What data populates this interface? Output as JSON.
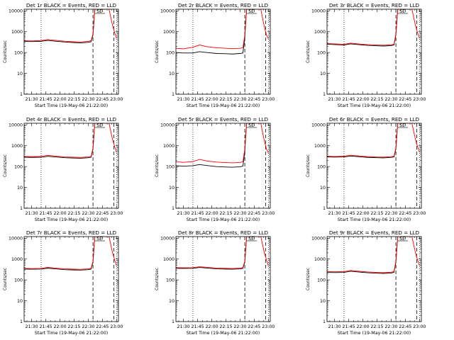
{
  "colors": {
    "events": "#000000",
    "lld": "#ff0000",
    "background": "#ffffff"
  },
  "chart_data": [
    {
      "type": "line",
      "title": "Det 1r BLACK = Events, RED = LLD",
      "xlabel": "Start Time (19-May-06 21:22:00)",
      "ylabel": "Counts/sec",
      "ylim": [
        1,
        12000
      ],
      "yscale": "log",
      "xlim": [
        "21:22",
        "23:02"
      ],
      "xticks": [
        "21:30",
        "21:45",
        "22:00",
        "22:15",
        "22:30",
        "22:45",
        "23:00"
      ],
      "yticks": [
        "1",
        "10",
        "100",
        "1000",
        "10000"
      ],
      "grid": false,
      "markers": {
        "dotted_vertical": [
          "21:40",
          "23:00"
        ],
        "dashed_vertical": [
          "22:35",
          "22:57"
        ]
      },
      "annotation": "SE",
      "series": [
        {
          "name": "Events",
          "x": [
            "21:22",
            "21:30",
            "21:40",
            "21:47",
            "21:55",
            "22:05",
            "22:15",
            "22:22",
            "22:30",
            "22:33",
            "22:35",
            "22:36",
            "22:37"
          ],
          "y": [
            340,
            335,
            345,
            380,
            350,
            320,
            300,
            290,
            310,
            330,
            700,
            3000,
            12000
          ]
        },
        {
          "name": "LLD",
          "x": [
            "21:22",
            "21:30",
            "21:40",
            "21:47",
            "21:55",
            "22:05",
            "22:15",
            "22:22",
            "22:30",
            "22:33",
            "22:35",
            "22:36",
            "22:37",
            "22:52",
            "22:54",
            "22:56",
            "22:58",
            "23:00"
          ],
          "y": [
            370,
            360,
            375,
            420,
            385,
            350,
            330,
            320,
            345,
            370,
            800,
            3300,
            12000,
            12000,
            4500,
            1800,
            900,
            480
          ]
        }
      ]
    },
    {
      "type": "line",
      "title": "Det 2r BLACK = Events, RED = LLD",
      "xlabel": "Start Time (19-May-06 21:22:00)",
      "ylabel": "Counts/sec",
      "ylim": [
        1,
        12000
      ],
      "yscale": "log",
      "xlim": [
        "21:22",
        "23:02"
      ],
      "xticks": [
        "21:30",
        "21:45",
        "22:00",
        "22:15",
        "22:30",
        "22:45",
        "23:00"
      ],
      "yticks": [
        "1",
        "10",
        "100",
        "1000",
        "10000"
      ],
      "grid": false,
      "markers": {
        "dotted_vertical": [
          "21:40",
          "23:00"
        ],
        "dashed_vertical": [
          "22:35",
          "22:57"
        ]
      },
      "annotation": "SE",
      "series": [
        {
          "name": "Events",
          "x": [
            "21:22",
            "21:30",
            "21:40",
            "21:47",
            "21:55",
            "22:05",
            "22:15",
            "22:22",
            "22:30",
            "22:33",
            "22:35",
            "22:36",
            "22:37"
          ],
          "y": [
            100,
            95,
            95,
            110,
            100,
            90,
            88,
            85,
            90,
            95,
            500,
            3000,
            12000
          ]
        },
        {
          "name": "LLD",
          "x": [
            "21:22",
            "21:30",
            "21:40",
            "21:47",
            "21:55",
            "22:05",
            "22:15",
            "22:22",
            "22:30",
            "22:33",
            "22:35",
            "22:36",
            "22:37",
            "22:52",
            "22:54",
            "22:56",
            "22:58",
            "23:00"
          ],
          "y": [
            160,
            150,
            180,
            230,
            190,
            170,
            160,
            155,
            160,
            170,
            700,
            3500,
            12000,
            12000,
            4000,
            1500,
            700,
            450
          ]
        }
      ]
    },
    {
      "type": "line",
      "title": "Det 3r BLACK = Events, RED = LLD",
      "xlabel": "Start Time (19-May-06 21:22:00)",
      "ylabel": "Counts/sec",
      "ylim": [
        1,
        12000
      ],
      "yscale": "log",
      "xlim": [
        "21:22",
        "23:02"
      ],
      "xticks": [
        "21:30",
        "21:45",
        "22:00",
        "22:15",
        "22:30",
        "22:45",
        "23:00"
      ],
      "yticks": [
        "1",
        "10",
        "100",
        "1000",
        "10000"
      ],
      "grid": false,
      "markers": {
        "dotted_vertical": [
          "21:40",
          "23:00"
        ],
        "dashed_vertical": [
          "22:35",
          "22:57"
        ]
      },
      "annotation": "SE",
      "series": [
        {
          "name": "Events",
          "x": [
            "21:22",
            "21:30",
            "21:40",
            "21:47",
            "21:55",
            "22:05",
            "22:15",
            "22:22",
            "22:30",
            "22:33",
            "22:35",
            "22:36",
            "22:37"
          ],
          "y": [
            250,
            240,
            230,
            260,
            240,
            220,
            210,
            205,
            215,
            230,
            700,
            3000,
            12000
          ]
        },
        {
          "name": "LLD",
          "x": [
            "21:22",
            "21:30",
            "21:40",
            "21:47",
            "21:55",
            "22:05",
            "22:15",
            "22:22",
            "22:30",
            "22:33",
            "22:35",
            "22:36",
            "22:37",
            "22:52",
            "22:54",
            "22:56",
            "22:58",
            "23:00"
          ],
          "y": [
            270,
            260,
            250,
            280,
            260,
            240,
            230,
            225,
            235,
            250,
            800,
            3300,
            12000,
            12000,
            4500,
            1800,
            900,
            480
          ]
        }
      ]
    },
    {
      "type": "line",
      "title": "Det 4r BLACK = Events, RED = LLD",
      "xlabel": "Start Time (19-May-06 21:22:00)",
      "ylabel": "Counts/sec",
      "ylim": [
        1,
        12000
      ],
      "yscale": "log",
      "xlim": [
        "21:22",
        "23:02"
      ],
      "xticks": [
        "21:30",
        "21:45",
        "22:00",
        "22:15",
        "22:30",
        "22:45",
        "23:00"
      ],
      "yticks": [
        "1",
        "10",
        "100",
        "1000",
        "10000"
      ],
      "grid": false,
      "markers": {
        "dotted_vertical": [
          "21:40",
          "23:00"
        ],
        "dashed_vertical": [
          "22:35",
          "22:57"
        ]
      },
      "annotation": "SE",
      "series": [
        {
          "name": "Events",
          "x": [
            "21:22",
            "21:30",
            "21:40",
            "21:47",
            "21:55",
            "22:05",
            "22:15",
            "22:22",
            "22:30",
            "22:33",
            "22:35",
            "22:36",
            "22:37"
          ],
          "y": [
            280,
            275,
            280,
            310,
            290,
            265,
            255,
            250,
            265,
            280,
            700,
            3000,
            12000
          ]
        },
        {
          "name": "LLD",
          "x": [
            "21:22",
            "21:30",
            "21:40",
            "21:47",
            "21:55",
            "22:05",
            "22:15",
            "22:22",
            "22:30",
            "22:33",
            "22:35",
            "22:36",
            "22:37",
            "22:52",
            "22:54",
            "22:56",
            "22:58",
            "23:00"
          ],
          "y": [
            310,
            300,
            310,
            345,
            320,
            290,
            280,
            275,
            290,
            310,
            800,
            3300,
            12000,
            12000,
            4500,
            1800,
            900,
            480
          ]
        }
      ]
    },
    {
      "type": "line",
      "title": "Det 5r BLACK = Events, RED = LLD",
      "xlabel": "Start Time (19-May-06 21:22:00)",
      "ylabel": "Counts/sec",
      "ylim": [
        1,
        12000
      ],
      "yscale": "log",
      "xlim": [
        "21:22",
        "23:02"
      ],
      "xticks": [
        "21:30",
        "21:45",
        "22:00",
        "22:15",
        "22:30",
        "22:45",
        "23:00"
      ],
      "yticks": [
        "1",
        "10",
        "100",
        "1000",
        "10000"
      ],
      "grid": false,
      "markers": {
        "dotted_vertical": [
          "21:40",
          "23:00"
        ],
        "dashed_vertical": [
          "22:35",
          "22:57"
        ]
      },
      "annotation": "SE",
      "series": [
        {
          "name": "Events",
          "x": [
            "21:22",
            "21:30",
            "21:40",
            "21:47",
            "21:55",
            "22:05",
            "22:15",
            "22:22",
            "22:30",
            "22:33",
            "22:35",
            "22:36",
            "22:37"
          ],
          "y": [
            110,
            105,
            110,
            125,
            112,
            100,
            95,
            93,
            98,
            105,
            500,
            3000,
            12000
          ]
        },
        {
          "name": "LLD",
          "x": [
            "21:22",
            "21:30",
            "21:40",
            "21:47",
            "21:55",
            "22:05",
            "22:15",
            "22:22",
            "22:30",
            "22:33",
            "22:35",
            "22:36",
            "22:37",
            "22:52",
            "22:54",
            "22:56",
            "22:58",
            "23:00"
          ],
          "y": [
            170,
            160,
            175,
            220,
            185,
            165,
            155,
            150,
            158,
            170,
            700,
            3500,
            12000,
            12000,
            4000,
            1500,
            700,
            450
          ]
        }
      ]
    },
    {
      "type": "line",
      "title": "Det 6r BLACK = Events, RED = LLD",
      "xlabel": "Start Time (19-May-06 21:22:00)",
      "ylabel": "Counts/sec",
      "ylim": [
        1,
        12000
      ],
      "yscale": "log",
      "xlim": [
        "21:22",
        "23:02"
      ],
      "xticks": [
        "21:30",
        "21:45",
        "22:00",
        "22:15",
        "22:30",
        "22:45",
        "23:00"
      ],
      "yticks": [
        "1",
        "10",
        "100",
        "1000",
        "10000"
      ],
      "grid": false,
      "markers": {
        "dotted_vertical": [
          "21:40",
          "23:00"
        ],
        "dashed_vertical": [
          "22:35",
          "22:57"
        ]
      },
      "annotation": "SE",
      "series": [
        {
          "name": "Events",
          "x": [
            "21:22",
            "21:30",
            "21:40",
            "21:47",
            "21:55",
            "22:05",
            "22:15",
            "22:22",
            "22:30",
            "22:33",
            "22:35",
            "22:36",
            "22:37"
          ],
          "y": [
            290,
            285,
            290,
            320,
            300,
            275,
            265,
            260,
            275,
            290,
            700,
            3000,
            12000
          ]
        },
        {
          "name": "LLD",
          "x": [
            "21:22",
            "21:30",
            "21:40",
            "21:47",
            "21:55",
            "22:05",
            "22:15",
            "22:22",
            "22:30",
            "22:33",
            "22:35",
            "22:36",
            "22:37",
            "22:52",
            "22:54",
            "22:56",
            "22:58",
            "23:00"
          ],
          "y": [
            315,
            305,
            315,
            350,
            325,
            300,
            288,
            283,
            298,
            315,
            800,
            3300,
            12000,
            12000,
            4500,
            1800,
            900,
            480
          ]
        }
      ]
    },
    {
      "type": "line",
      "title": "Det 7r BLACK = Events, RED = LLD",
      "xlabel": "Start Time (19-May-06 21:22:00)",
      "ylabel": "Counts/sec",
      "ylim": [
        1,
        12000
      ],
      "yscale": "log",
      "xlim": [
        "21:22",
        "23:02"
      ],
      "xticks": [
        "21:30",
        "21:45",
        "22:00",
        "22:15",
        "22:30",
        "22:45",
        "23:00"
      ],
      "yticks": [
        "1",
        "10",
        "100",
        "1000",
        "10000"
      ],
      "grid": false,
      "markers": {
        "dotted_vertical": [
          "21:40",
          "23:00"
        ],
        "dashed_vertical": [
          "22:35",
          "22:57"
        ]
      },
      "annotation": "SE",
      "series": [
        {
          "name": "Events",
          "x": [
            "21:22",
            "21:30",
            "21:40",
            "21:47",
            "21:55",
            "22:05",
            "22:15",
            "22:22",
            "22:30",
            "22:33",
            "22:35",
            "22:36",
            "22:37"
          ],
          "y": [
            330,
            325,
            330,
            365,
            340,
            310,
            300,
            295,
            310,
            330,
            700,
            3000,
            12000
          ]
        },
        {
          "name": "LLD",
          "x": [
            "21:22",
            "21:30",
            "21:40",
            "21:47",
            "21:55",
            "22:05",
            "22:15",
            "22:22",
            "22:30",
            "22:33",
            "22:35",
            "22:36",
            "22:37",
            "22:52",
            "22:54",
            "22:56",
            "22:58",
            "23:00"
          ],
          "y": [
            360,
            350,
            360,
            400,
            370,
            340,
            328,
            322,
            340,
            360,
            800,
            3300,
            12000,
            12000,
            4500,
            1800,
            900,
            480
          ]
        }
      ]
    },
    {
      "type": "line",
      "title": "Det 8r BLACK = Events, RED = LLD",
      "xlabel": "Start Time (19-May-06 21:22:00)",
      "ylabel": "Counts/sec",
      "ylim": [
        1,
        12000
      ],
      "yscale": "log",
      "xlim": [
        "21:22",
        "23:02"
      ],
      "xticks": [
        "21:30",
        "21:45",
        "22:00",
        "22:15",
        "22:30",
        "22:45",
        "23:00"
      ],
      "yticks": [
        "1",
        "10",
        "100",
        "1000",
        "10000"
      ],
      "grid": false,
      "markers": {
        "dotted_vertical": [
          "21:40",
          "23:00"
        ],
        "dashed_vertical": [
          "22:35",
          "22:57"
        ]
      },
      "annotation": "SE",
      "series": [
        {
          "name": "Events",
          "x": [
            "21:22",
            "21:30",
            "21:40",
            "21:47",
            "21:55",
            "22:05",
            "22:15",
            "22:22",
            "22:30",
            "22:33",
            "22:35",
            "22:36",
            "22:37"
          ],
          "y": [
            360,
            355,
            360,
            395,
            370,
            340,
            330,
            325,
            340,
            360,
            700,
            3000,
            12000
          ]
        },
        {
          "name": "LLD",
          "x": [
            "21:22",
            "21:30",
            "21:40",
            "21:47",
            "21:55",
            "22:05",
            "22:15",
            "22:22",
            "22:30",
            "22:33",
            "22:35",
            "22:36",
            "22:37",
            "22:52",
            "22:54",
            "22:56",
            "22:58",
            "23:00"
          ],
          "y": [
            390,
            380,
            390,
            430,
            400,
            370,
            358,
            352,
            370,
            390,
            800,
            3300,
            12000,
            12000,
            4500,
            1800,
            900,
            480
          ]
        }
      ]
    },
    {
      "type": "line",
      "title": "Det 9r BLACK = Events, RED = LLD",
      "xlabel": "Start Time (19-May-06 21:22:00)",
      "ylabel": "Counts/sec",
      "ylim": [
        1,
        12000
      ],
      "yscale": "log",
      "xlim": [
        "21:22",
        "23:02"
      ],
      "xticks": [
        "21:30",
        "21:45",
        "22:00",
        "22:15",
        "22:30",
        "22:45",
        "23:00"
      ],
      "yticks": [
        "1",
        "10",
        "100",
        "1000",
        "10000"
      ],
      "grid": false,
      "markers": {
        "dotted_vertical": [
          "21:40",
          "23:00"
        ],
        "dashed_vertical": [
          "22:35",
          "22:57"
        ]
      },
      "annotation": "SE",
      "series": [
        {
          "name": "Events",
          "x": [
            "21:22",
            "21:30",
            "21:40",
            "21:47",
            "21:55",
            "22:05",
            "22:15",
            "22:22",
            "22:30",
            "22:33",
            "22:35",
            "22:36",
            "22:37"
          ],
          "y": [
            230,
            225,
            230,
            260,
            240,
            220,
            210,
            205,
            215,
            230,
            700,
            3000,
            12000
          ]
        },
        {
          "name": "LLD",
          "x": [
            "21:22",
            "21:30",
            "21:40",
            "21:47",
            "21:55",
            "22:05",
            "22:15",
            "22:22",
            "22:30",
            "22:33",
            "22:35",
            "22:36",
            "22:37",
            "22:52",
            "22:54",
            "22:56",
            "22:58",
            "23:00"
          ],
          "y": [
            250,
            245,
            250,
            285,
            262,
            240,
            230,
            224,
            235,
            250,
            800,
            3300,
            12000,
            12000,
            4500,
            1800,
            900,
            480
          ]
        }
      ]
    }
  ]
}
